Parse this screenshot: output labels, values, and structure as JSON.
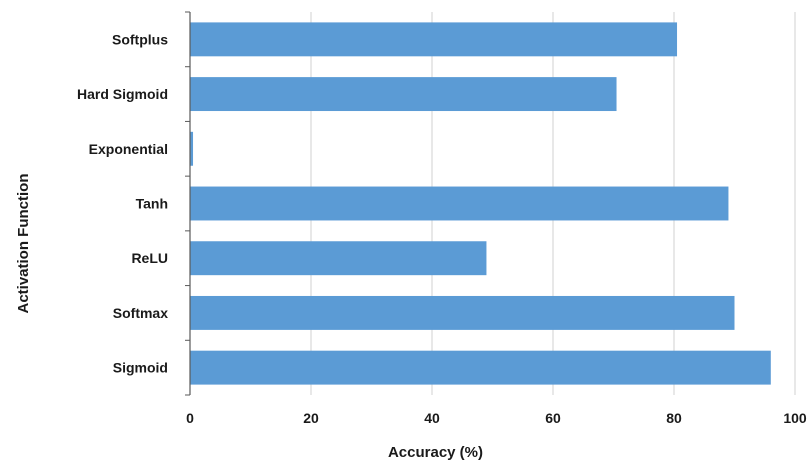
{
  "chart_data": {
    "type": "bar",
    "orientation": "horizontal",
    "categories": [
      "Softplus",
      "Hard Sigmoid",
      "Exponential",
      "Tanh",
      "ReLU",
      "Softmax",
      "Sigmoid"
    ],
    "values": [
      80.5,
      70.5,
      0.5,
      89,
      49,
      90,
      96
    ],
    "xlabel": "Accuracy (%)",
    "ylabel": "Activation Function",
    "xlim": [
      0,
      100
    ],
    "xticks": [
      0,
      20,
      40,
      60,
      80,
      100
    ],
    "grid": "vertical",
    "bar_color": "#5b9bd5",
    "grid_color": "#d9d9d9"
  }
}
